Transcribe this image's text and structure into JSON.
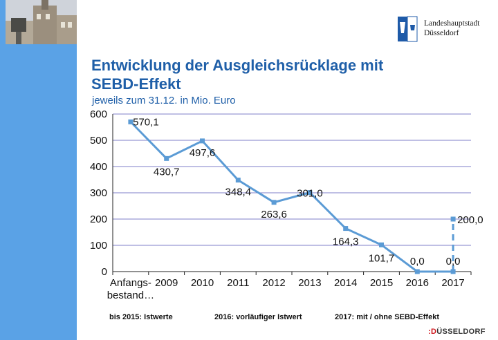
{
  "header": {
    "org_name_line1": "Landeshauptstadt",
    "org_name_line2": "Düsseldorf",
    "title_line1": "Entwicklung der Ausgleichsrücklage mit",
    "title_line2": "SEBD-Effekt",
    "subtitle": "jeweils zum 31.12. in Mio. Euro"
  },
  "footnotes": [
    "bis 2015: Istwerte",
    "2016: vorläufiger Istwert",
    "2017: mit / ohne SEBD-Effekt"
  ],
  "brand": {
    "prefix": ":D",
    "rest": "ÜSSELDORF"
  },
  "colors": {
    "sidebar": "#5aa2e6",
    "line": "#5b9bd5",
    "grid": "#7f7fc8",
    "title": "#1f5fa8"
  },
  "chart_data": {
    "type": "line",
    "categories": [
      "Anfangs-bestand…",
      "2009",
      "2010",
      "2011",
      "2012",
      "2013",
      "2014",
      "2015",
      "2016",
      "2017"
    ],
    "category_lines": [
      [
        "Anfangs-",
        "bestand…"
      ],
      [
        "2009"
      ],
      [
        "2010"
      ],
      [
        "2011"
      ],
      [
        "2012"
      ],
      [
        "2013"
      ],
      [
        "2014"
      ],
      [
        "2015"
      ],
      [
        "2016"
      ],
      [
        "2017"
      ]
    ],
    "series": [
      {
        "values": [
          570.1,
          430.7,
          497.6,
          348.4,
          263.6,
          301.0,
          164.3,
          101.7,
          0.0,
          0.0
        ]
      }
    ],
    "extra_point": {
      "category": "2017",
      "value": 200.0,
      "label": "200,0",
      "style": "dashed"
    },
    "data_labels": [
      "570,1",
      "430,7",
      "497,6",
      "348,4",
      "263,6",
      "301,0",
      "164,3",
      "101,7",
      "0,0",
      "0,0"
    ],
    "yticks": [
      0,
      100,
      200,
      300,
      400,
      500,
      600
    ],
    "ylim": [
      0,
      600
    ],
    "grid": true,
    "legend": "none"
  }
}
